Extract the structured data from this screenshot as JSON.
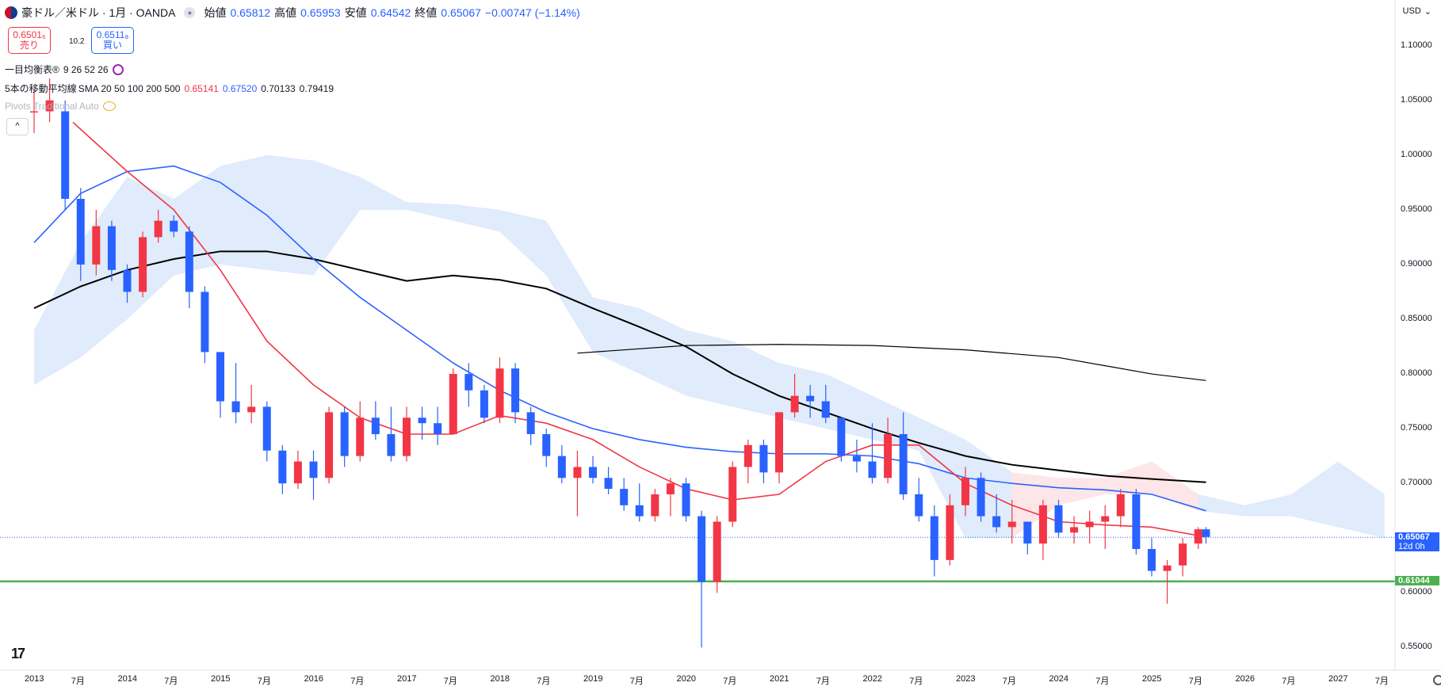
{
  "header": {
    "symbol_title": "豪ドル／米ドル · 1月 · OANDA",
    "ohlc": [
      {
        "label": "始値",
        "value": "0.65812"
      },
      {
        "label": "高値",
        "value": "0.65953"
      },
      {
        "label": "安値",
        "value": "0.64542"
      },
      {
        "label": "終値",
        "value": "0.65067"
      }
    ],
    "change": "−0.00747 (−1.14%)",
    "sell_price": "0.6501₆",
    "sell_label": "売り",
    "spread": "10.2",
    "buy_price": "0.6511₈",
    "buy_label": "買い",
    "currency": "USD",
    "currency_caret": "⌄",
    "collapse_glyph": "^",
    "tv_logo": "17"
  },
  "indicators": {
    "ichimoku": {
      "name": "一目均衡表®",
      "params": "9 26 52 26"
    },
    "sma": {
      "name": "5本の移動平均線",
      "params": "SMA 20 50 100 200 500",
      "values": [
        {
          "value": "0.65141",
          "color": "#f23645"
        },
        {
          "value": "0.67520",
          "color": "#2962ff"
        },
        {
          "value": "0.70133",
          "color": "#000000"
        },
        {
          "value": "0.79419",
          "color": "#000000"
        }
      ]
    },
    "pivots": {
      "name": "Pivots Traditional Auto"
    }
  },
  "chart_data": {
    "type": "candlestick",
    "instrument": "AUD/USD",
    "timeframe": "1M",
    "ylim": [
      0.53,
      1.12
    ],
    "y_ticks": [
      "1.10000",
      "1.05000",
      "1.00000",
      "0.95000",
      "0.90000",
      "0.85000",
      "0.80000",
      "0.75000",
      "0.70000",
      "0.65000",
      "0.60000",
      "0.55000"
    ],
    "x_labels": [
      "2013",
      "7月",
      "2014",
      "7月",
      "2015",
      "7月",
      "2016",
      "7月",
      "2017",
      "7月",
      "2018",
      "7月",
      "2019",
      "7月",
      "2020",
      "7月",
      "2021",
      "7月",
      "2022",
      "7月",
      "2023",
      "7月",
      "2024",
      "7月",
      "2025",
      "7月",
      "2026",
      "7月",
      "2027",
      "7月"
    ],
    "current_price": {
      "value": "0.65067",
      "countdown": "12d 0h"
    },
    "horizontal_line": {
      "value": "0.61044",
      "color": "#4caf50"
    },
    "colors": {
      "up": "#f23645",
      "down": "#2962ff",
      "sma20": "#f23645",
      "sma50": "#2962ff",
      "sma100": "#000000",
      "sma200": "#000000",
      "cloud_bull": "#fde2e4",
      "cloud_bear": "#dbe8fa"
    },
    "candle_series": [
      {
        "date": "2013-01",
        "o": 1.04,
        "h": 1.06,
        "l": 1.02,
        "c": 1.04
      },
      {
        "date": "2013-03",
        "o": 1.04,
        "h": 1.07,
        "l": 1.03,
        "c": 1.05
      },
      {
        "date": "2013-05",
        "o": 1.04,
        "h": 1.05,
        "l": 0.95,
        "c": 0.96
      },
      {
        "date": "2013-07",
        "o": 0.96,
        "h": 0.97,
        "l": 0.885,
        "c": 0.9
      },
      {
        "date": "2013-09",
        "o": 0.9,
        "h": 0.95,
        "l": 0.89,
        "c": 0.935
      },
      {
        "date": "2013-11",
        "o": 0.935,
        "h": 0.94,
        "l": 0.885,
        "c": 0.895
      },
      {
        "date": "2014-01",
        "o": 0.895,
        "h": 0.9,
        "l": 0.865,
        "c": 0.875
      },
      {
        "date": "2014-03",
        "o": 0.875,
        "h": 0.93,
        "l": 0.87,
        "c": 0.925
      },
      {
        "date": "2014-05",
        "o": 0.925,
        "h": 0.95,
        "l": 0.92,
        "c": 0.94
      },
      {
        "date": "2014-07",
        "o": 0.94,
        "h": 0.945,
        "l": 0.925,
        "c": 0.93
      },
      {
        "date": "2014-09",
        "o": 0.93,
        "h": 0.935,
        "l": 0.86,
        "c": 0.875
      },
      {
        "date": "2014-11",
        "o": 0.875,
        "h": 0.88,
        "l": 0.81,
        "c": 0.82
      },
      {
        "date": "2015-01",
        "o": 0.82,
        "h": 0.82,
        "l": 0.76,
        "c": 0.775
      },
      {
        "date": "2015-03",
        "o": 0.775,
        "h": 0.81,
        "l": 0.755,
        "c": 0.765
      },
      {
        "date": "2015-05",
        "o": 0.765,
        "h": 0.79,
        "l": 0.755,
        "c": 0.77
      },
      {
        "date": "2015-07",
        "o": 0.77,
        "h": 0.775,
        "l": 0.72,
        "c": 0.73
      },
      {
        "date": "2015-09",
        "o": 0.73,
        "h": 0.735,
        "l": 0.69,
        "c": 0.7
      },
      {
        "date": "2015-11",
        "o": 0.7,
        "h": 0.73,
        "l": 0.695,
        "c": 0.72
      },
      {
        "date": "2016-01",
        "o": 0.72,
        "h": 0.73,
        "l": 0.685,
        "c": 0.705
      },
      {
        "date": "2016-03",
        "o": 0.705,
        "h": 0.77,
        "l": 0.7,
        "c": 0.765
      },
      {
        "date": "2016-05",
        "o": 0.765,
        "h": 0.77,
        "l": 0.715,
        "c": 0.725
      },
      {
        "date": "2016-07",
        "o": 0.725,
        "h": 0.775,
        "l": 0.72,
        "c": 0.76
      },
      {
        "date": "2016-09",
        "o": 0.76,
        "h": 0.775,
        "l": 0.74,
        "c": 0.745
      },
      {
        "date": "2016-11",
        "o": 0.745,
        "h": 0.77,
        "l": 0.72,
        "c": 0.725
      },
      {
        "date": "2017-01",
        "o": 0.725,
        "h": 0.77,
        "l": 0.72,
        "c": 0.76
      },
      {
        "date": "2017-03",
        "o": 0.76,
        "h": 0.77,
        "l": 0.74,
        "c": 0.755
      },
      {
        "date": "2017-05",
        "o": 0.755,
        "h": 0.77,
        "l": 0.735,
        "c": 0.745
      },
      {
        "date": "2017-07",
        "o": 0.745,
        "h": 0.805,
        "l": 0.745,
        "c": 0.8
      },
      {
        "date": "2017-09",
        "o": 0.8,
        "h": 0.81,
        "l": 0.77,
        "c": 0.785
      },
      {
        "date": "2017-11",
        "o": 0.785,
        "h": 0.79,
        "l": 0.755,
        "c": 0.76
      },
      {
        "date": "2018-01",
        "o": 0.76,
        "h": 0.815,
        "l": 0.755,
        "c": 0.805
      },
      {
        "date": "2018-03",
        "o": 0.805,
        "h": 0.81,
        "l": 0.755,
        "c": 0.765
      },
      {
        "date": "2018-05",
        "o": 0.765,
        "h": 0.77,
        "l": 0.735,
        "c": 0.745
      },
      {
        "date": "2018-07",
        "o": 0.745,
        "h": 0.75,
        "l": 0.715,
        "c": 0.725
      },
      {
        "date": "2018-09",
        "o": 0.725,
        "h": 0.735,
        "l": 0.7,
        "c": 0.705
      },
      {
        "date": "2018-11",
        "o": 0.705,
        "h": 0.73,
        "l": 0.67,
        "c": 0.715
      },
      {
        "date": "2019-01",
        "o": 0.715,
        "h": 0.725,
        "l": 0.7,
        "c": 0.705
      },
      {
        "date": "2019-03",
        "o": 0.705,
        "h": 0.715,
        "l": 0.69,
        "c": 0.695
      },
      {
        "date": "2019-05",
        "o": 0.695,
        "h": 0.705,
        "l": 0.675,
        "c": 0.68
      },
      {
        "date": "2019-07",
        "o": 0.68,
        "h": 0.7,
        "l": 0.665,
        "c": 0.67
      },
      {
        "date": "2019-09",
        "o": 0.67,
        "h": 0.695,
        "l": 0.665,
        "c": 0.69
      },
      {
        "date": "2019-11",
        "o": 0.69,
        "h": 0.705,
        "l": 0.67,
        "c": 0.7
      },
      {
        "date": "2020-01",
        "o": 0.7,
        "h": 0.705,
        "l": 0.665,
        "c": 0.67
      },
      {
        "date": "2020-03",
        "o": 0.67,
        "h": 0.675,
        "l": 0.55,
        "c": 0.61
      },
      {
        "date": "2020-05",
        "o": 0.61,
        "h": 0.67,
        "l": 0.6,
        "c": 0.665
      },
      {
        "date": "2020-07",
        "o": 0.665,
        "h": 0.72,
        "l": 0.66,
        "c": 0.715
      },
      {
        "date": "2020-09",
        "o": 0.715,
        "h": 0.74,
        "l": 0.7,
        "c": 0.735
      },
      {
        "date": "2020-11",
        "o": 0.735,
        "h": 0.74,
        "l": 0.7,
        "c": 0.71
      },
      {
        "date": "2021-01",
        "o": 0.71,
        "h": 0.76,
        "l": 0.7,
        "c": 0.765
      },
      {
        "date": "2021-03",
        "o": 0.765,
        "h": 0.8,
        "l": 0.76,
        "c": 0.78
      },
      {
        "date": "2021-05",
        "o": 0.78,
        "h": 0.79,
        "l": 0.76,
        "c": 0.775
      },
      {
        "date": "2021-07",
        "o": 0.775,
        "h": 0.79,
        "l": 0.755,
        "c": 0.76
      },
      {
        "date": "2021-09",
        "o": 0.76,
        "h": 0.76,
        "l": 0.72,
        "c": 0.725
      },
      {
        "date": "2021-11",
        "o": 0.725,
        "h": 0.74,
        "l": 0.71,
        "c": 0.72
      },
      {
        "date": "2022-01",
        "o": 0.72,
        "h": 0.755,
        "l": 0.7,
        "c": 0.705
      },
      {
        "date": "2022-03",
        "o": 0.705,
        "h": 0.76,
        "l": 0.7,
        "c": 0.745
      },
      {
        "date": "2022-05",
        "o": 0.745,
        "h": 0.765,
        "l": 0.685,
        "c": 0.69
      },
      {
        "date": "2022-07",
        "o": 0.69,
        "h": 0.705,
        "l": 0.665,
        "c": 0.67
      },
      {
        "date": "2022-09",
        "o": 0.67,
        "h": 0.68,
        "l": 0.615,
        "c": 0.63
      },
      {
        "date": "2022-11",
        "o": 0.63,
        "h": 0.69,
        "l": 0.625,
        "c": 0.68
      },
      {
        "date": "2023-01",
        "o": 0.68,
        "h": 0.715,
        "l": 0.67,
        "c": 0.705
      },
      {
        "date": "2023-03",
        "o": 0.705,
        "h": 0.71,
        "l": 0.665,
        "c": 0.67
      },
      {
        "date": "2023-05",
        "o": 0.67,
        "h": 0.69,
        "l": 0.655,
        "c": 0.66
      },
      {
        "date": "2023-07",
        "o": 0.66,
        "h": 0.685,
        "l": 0.645,
        "c": 0.665
      },
      {
        "date": "2023-09",
        "o": 0.665,
        "h": 0.665,
        "l": 0.635,
        "c": 0.645
      },
      {
        "date": "2023-11",
        "o": 0.645,
        "h": 0.685,
        "l": 0.63,
        "c": 0.68
      },
      {
        "date": "2024-01",
        "o": 0.68,
        "h": 0.685,
        "l": 0.65,
        "c": 0.655
      },
      {
        "date": "2024-03",
        "o": 0.655,
        "h": 0.67,
        "l": 0.645,
        "c": 0.66
      },
      {
        "date": "2024-05",
        "o": 0.66,
        "h": 0.675,
        "l": 0.645,
        "c": 0.665
      },
      {
        "date": "2024-07",
        "o": 0.665,
        "h": 0.68,
        "l": 0.64,
        "c": 0.67
      },
      {
        "date": "2024-09",
        "o": 0.67,
        "h": 0.695,
        "l": 0.66,
        "c": 0.69
      },
      {
        "date": "2024-11",
        "o": 0.69,
        "h": 0.695,
        "l": 0.635,
        "c": 0.64
      },
      {
        "date": "2025-01",
        "o": 0.64,
        "h": 0.65,
        "l": 0.615,
        "c": 0.62
      },
      {
        "date": "2025-03",
        "o": 0.62,
        "h": 0.63,
        "l": 0.59,
        "c": 0.625
      },
      {
        "date": "2025-05",
        "o": 0.625,
        "h": 0.65,
        "l": 0.615,
        "c": 0.645
      },
      {
        "date": "2025-07",
        "o": 0.645,
        "h": 0.66,
        "l": 0.64,
        "c": 0.658
      },
      {
        "date": "2025-08",
        "o": 0.658,
        "h": 0.66,
        "l": 0.645,
        "c": 0.651
      }
    ],
    "sma20": [
      [
        "2013-06",
        1.03
      ],
      [
        "2014-01",
        0.985
      ],
      [
        "2014-07",
        0.95
      ],
      [
        "2015-01",
        0.895
      ],
      [
        "2015-07",
        0.83
      ],
      [
        "2016-01",
        0.79
      ],
      [
        "2016-07",
        0.76
      ],
      [
        "2017-01",
        0.745
      ],
      [
        "2017-07",
        0.745
      ],
      [
        "2018-01",
        0.762
      ],
      [
        "2018-07",
        0.755
      ],
      [
        "2019-01",
        0.74
      ],
      [
        "2019-07",
        0.715
      ],
      [
        "2020-01",
        0.695
      ],
      [
        "2020-07",
        0.685
      ],
      [
        "2021-01",
        0.69
      ],
      [
        "2021-07",
        0.72
      ],
      [
        "2022-01",
        0.735
      ],
      [
        "2022-07",
        0.735
      ],
      [
        "2023-01",
        0.7
      ],
      [
        "2023-07",
        0.68
      ],
      [
        "2024-01",
        0.665
      ],
      [
        "2024-07",
        0.662
      ],
      [
        "2025-01",
        0.66
      ],
      [
        "2025-08",
        0.651
      ]
    ],
    "sma50": [
      [
        "2013-01",
        0.92
      ],
      [
        "2013-07",
        0.965
      ],
      [
        "2014-01",
        0.985
      ],
      [
        "2014-07",
        0.99
      ],
      [
        "2015-01",
        0.975
      ],
      [
        "2015-07",
        0.945
      ],
      [
        "2016-01",
        0.905
      ],
      [
        "2016-07",
        0.87
      ],
      [
        "2017-01",
        0.84
      ],
      [
        "2017-07",
        0.81
      ],
      [
        "2018-01",
        0.785
      ],
      [
        "2018-07",
        0.765
      ],
      [
        "2019-01",
        0.75
      ],
      [
        "2019-07",
        0.74
      ],
      [
        "2020-01",
        0.733
      ],
      [
        "2020-07",
        0.729
      ],
      [
        "2021-01",
        0.727
      ],
      [
        "2021-07",
        0.727
      ],
      [
        "2022-01",
        0.725
      ],
      [
        "2022-07",
        0.718
      ],
      [
        "2023-01",
        0.705
      ],
      [
        "2023-07",
        0.7
      ],
      [
        "2024-01",
        0.696
      ],
      [
        "2024-07",
        0.694
      ],
      [
        "2025-01",
        0.69
      ],
      [
        "2025-08",
        0.675
      ]
    ],
    "sma100": [
      [
        "2013-01",
        0.86
      ],
      [
        "2013-07",
        0.88
      ],
      [
        "2014-01",
        0.895
      ],
      [
        "2014-07",
        0.905
      ],
      [
        "2015-01",
        0.912
      ],
      [
        "2015-07",
        0.912
      ],
      [
        "2016-01",
        0.905
      ],
      [
        "2016-07",
        0.895
      ],
      [
        "2017-01",
        0.885
      ],
      [
        "2017-07",
        0.89
      ],
      [
        "2018-01",
        0.886
      ],
      [
        "2018-07",
        0.878
      ],
      [
        "2019-01",
        0.86
      ],
      [
        "2019-07",
        0.843
      ],
      [
        "2020-01",
        0.825
      ],
      [
        "2020-07",
        0.8
      ],
      [
        "2021-01",
        0.78
      ],
      [
        "2021-07",
        0.765
      ],
      [
        "2022-01",
        0.75
      ],
      [
        "2022-07",
        0.737
      ],
      [
        "2023-01",
        0.725
      ],
      [
        "2023-07",
        0.717
      ],
      [
        "2024-01",
        0.712
      ],
      [
        "2024-07",
        0.707
      ],
      [
        "2025-01",
        0.704
      ],
      [
        "2025-08",
        0.701
      ]
    ],
    "sma200": [
      [
        "2018-11",
        0.819
      ],
      [
        "2020-01",
        0.826
      ],
      [
        "2021-01",
        0.827
      ],
      [
        "2022-01",
        0.826
      ],
      [
        "2023-01",
        0.822
      ],
      [
        "2024-01",
        0.815
      ],
      [
        "2025-01",
        0.8
      ],
      [
        "2025-08",
        0.794
      ]
    ],
    "cloud": [
      [
        "2013-01",
        0.84,
        0.79
      ],
      [
        "2013-07",
        0.92,
        0.815
      ],
      [
        "2014-01",
        0.98,
        0.85
      ],
      [
        "2014-07",
        0.96,
        0.89
      ],
      [
        "2015-01",
        0.99,
        0.9
      ],
      [
        "2015-07",
        1.0,
        0.895
      ],
      [
        "2016-01",
        0.995,
        0.89
      ],
      [
        "2016-07",
        0.98,
        0.95
      ],
      [
        "2017-01",
        0.957,
        0.95
      ],
      [
        "2017-07",
        0.955,
        0.94
      ],
      [
        "2018-01",
        0.95,
        0.93
      ],
      [
        "2018-07",
        0.94,
        0.89
      ],
      [
        "2019-01",
        0.87,
        0.82
      ],
      [
        "2019-07",
        0.86,
        0.8
      ],
      [
        "2020-01",
        0.84,
        0.78
      ],
      [
        "2020-07",
        0.83,
        0.77
      ],
      [
        "2021-01",
        0.81,
        0.76
      ],
      [
        "2021-07",
        0.8,
        0.75
      ],
      [
        "2022-01",
        0.78,
        0.74
      ],
      [
        "2022-07",
        0.76,
        0.73
      ],
      [
        "2023-01",
        0.74,
        0.65
      ],
      [
        "2023-07",
        0.71,
        0.65
      ],
      [
        "2024-01",
        0.705,
        0.68
      ],
      [
        "2024-07",
        0.705,
        0.69
      ],
      [
        "2025-01",
        0.72,
        0.69
      ],
      [
        "2025-07",
        0.69,
        0.675
      ],
      [
        "2026-01",
        0.68,
        0.67
      ],
      [
        "2026-07",
        0.69,
        0.67
      ],
      [
        "2027-01",
        0.72,
        0.66
      ],
      [
        "2027-07",
        0.69,
        0.65
      ]
    ]
  }
}
